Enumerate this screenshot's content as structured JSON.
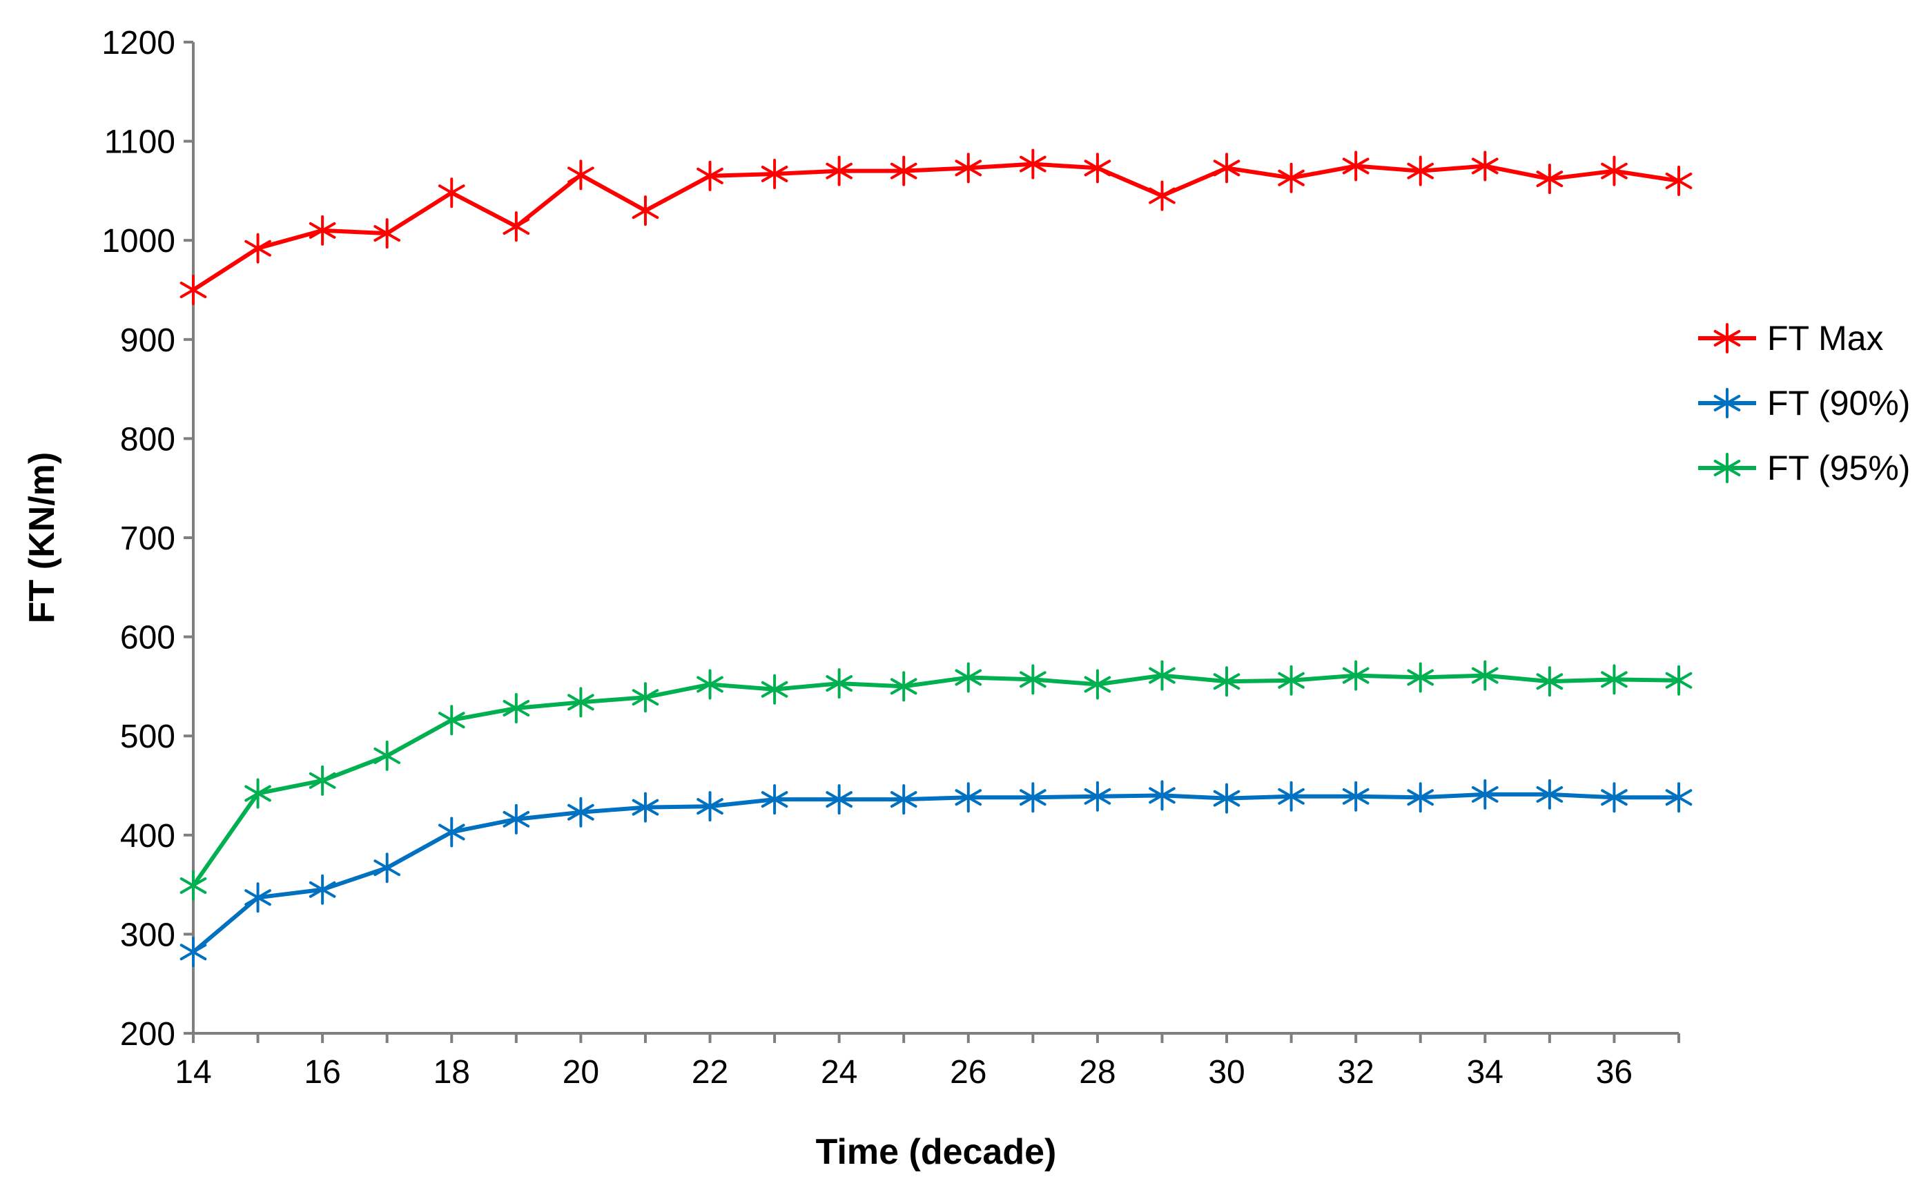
{
  "chart_data": {
    "type": "line",
    "title": "",
    "xlabel": "Time (decade)",
    "ylabel": "FT (KN/m)",
    "xlim": [
      14,
      37
    ],
    "ylim": [
      200,
      1200
    ],
    "x_ticks": [
      14,
      16,
      18,
      20,
      22,
      24,
      26,
      28,
      30,
      32,
      34,
      36
    ],
    "y_ticks": [
      200,
      300,
      400,
      500,
      600,
      700,
      800,
      900,
      1000,
      1100,
      1200
    ],
    "grid": false,
    "legend_position": "right",
    "x": [
      14,
      15,
      16,
      17,
      18,
      19,
      20,
      21,
      22,
      23,
      24,
      25,
      26,
      27,
      28,
      29,
      30,
      31,
      32,
      33,
      34,
      35,
      36,
      37
    ],
    "series": [
      {
        "name": "FT Max",
        "color": "#ff0000",
        "marker": "star",
        "values": [
          950,
          992,
          1010,
          1007,
          1048,
          1014,
          1066,
          1030,
          1065,
          1067,
          1070,
          1070,
          1073,
          1077,
          1073,
          1045,
          1073,
          1063,
          1075,
          1070,
          1075,
          1062,
          1070,
          1060
        ]
      },
      {
        "name": "FT (90%)",
        "color": "#0070c0",
        "marker": "star",
        "values": [
          282,
          337,
          345,
          367,
          403,
          416,
          423,
          428,
          429,
          436,
          436,
          436,
          438,
          438,
          439,
          440,
          437,
          439,
          439,
          438,
          441,
          441,
          438,
          438
        ]
      },
      {
        "name": "FT (95%)",
        "color": "#00b050",
        "marker": "star",
        "values": [
          349,
          442,
          455,
          480,
          516,
          528,
          534,
          539,
          552,
          547,
          553,
          550,
          559,
          557,
          552,
          561,
          555,
          556,
          561,
          559,
          561,
          555,
          557,
          556
        ]
      }
    ]
  }
}
